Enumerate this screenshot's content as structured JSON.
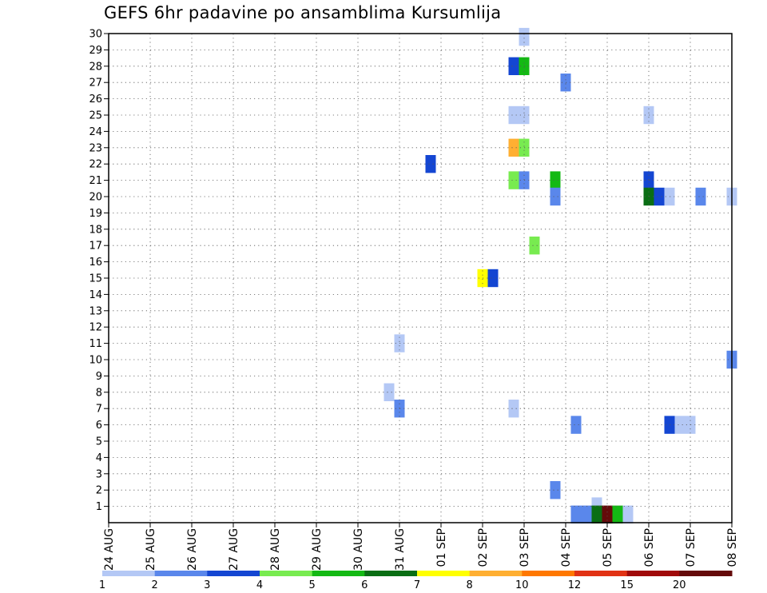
{
  "chart_data": {
    "type": "heatmap",
    "title": "GEFS 6hr padavine po ansamblima Kursumlija",
    "xlabel": "",
    "ylabel": "",
    "x_ticks": [
      "24 AUG",
      "25 AUG",
      "26 AUG",
      "27 AUG",
      "28 AUG",
      "29 AUG",
      "30 AUG",
      "31 AUG",
      "01 SEP",
      "02 SEP",
      "03 SEP",
      "04 SEP",
      "05 SEP",
      "06 SEP",
      "07 SEP",
      "08 SEP"
    ],
    "y_ticks": [
      1,
      2,
      3,
      4,
      5,
      6,
      7,
      8,
      9,
      10,
      11,
      12,
      13,
      14,
      15,
      16,
      17,
      18,
      19,
      20,
      21,
      22,
      23,
      24,
      25,
      26,
      27,
      28,
      29,
      30
    ],
    "xlim": [
      "24 AUG",
      "08 SEP"
    ],
    "ylim": [
      0,
      30
    ],
    "grid": true,
    "legend": {
      "position": "bottom",
      "labels": [
        "1",
        "2",
        "3",
        "4",
        "5",
        "6",
        "7",
        "8",
        "10",
        "12",
        "15",
        "20"
      ],
      "colors": [
        "#b4c8f5",
        "#5a87eb",
        "#1446d2",
        "#78eb50",
        "#14b914",
        "#0a6e14",
        "#ffff00",
        "#ffaf32",
        "#ff7800",
        "#e13214",
        "#a00a0a",
        "#640a0a"
      ]
    },
    "cells": [
      {
        "date": "03 SEP",
        "member": 29.8,
        "value": 1.5
      },
      {
        "date": "02 SEP 18Z",
        "member": 28,
        "value": 3.5
      },
      {
        "date": "03 SEP",
        "member": 28,
        "value": 5.5
      },
      {
        "date": "04 SEP",
        "member": 27,
        "value": 2.5
      },
      {
        "date": "02 SEP 18Z",
        "member": 25,
        "value": 1.5
      },
      {
        "date": "03 SEP",
        "member": 25,
        "value": 1.5
      },
      {
        "date": "06 SEP",
        "member": 25,
        "value": 1.5
      },
      {
        "date": "02 SEP 18Z",
        "member": 23,
        "value": 9
      },
      {
        "date": "03 SEP",
        "member": 23,
        "value": 4.5
      },
      {
        "date": "31 AUG 18Z",
        "member": 22,
        "value": 3.5
      },
      {
        "date": "02 SEP 18Z",
        "member": 21,
        "value": 4.5
      },
      {
        "date": "03 SEP",
        "member": 21,
        "value": 2.5
      },
      {
        "date": "03 SEP 18Z",
        "member": 21,
        "value": 5.5
      },
      {
        "date": "03 SEP 18Z",
        "member": 20,
        "value": 2.5
      },
      {
        "date": "06 SEP",
        "member": 21,
        "value": 3.5
      },
      {
        "date": "06 SEP",
        "member": 20,
        "value": 6.5
      },
      {
        "date": "06 SEP 06Z",
        "member": 20,
        "value": 3.5
      },
      {
        "date": "06 SEP 12Z",
        "member": 20,
        "value": 1.5
      },
      {
        "date": "07 SEP 06Z",
        "member": 20,
        "value": 2.5
      },
      {
        "date": "08 SEP",
        "member": 20,
        "value": 1.5
      },
      {
        "date": "03 SEP 06Z",
        "member": 17,
        "value": 4.5
      },
      {
        "date": "02 SEP",
        "member": 15,
        "value": 7.5
      },
      {
        "date": "02 SEP 06Z",
        "member": 15,
        "value": 3.5
      },
      {
        "date": "31 AUG",
        "member": 11,
        "value": 1.5
      },
      {
        "date": "08 SEP",
        "member": 10,
        "value": 2.5
      },
      {
        "date": "30 AUG 18Z",
        "member": 8,
        "value": 1.5
      },
      {
        "date": "31 AUG",
        "member": 7,
        "value": 2.5
      },
      {
        "date": "02 SEP 18Z",
        "member": 7,
        "value": 1.5
      },
      {
        "date": "04 SEP 06Z",
        "member": 6,
        "value": 2.5
      },
      {
        "date": "06 SEP 12Z",
        "member": 6,
        "value": 3.5
      },
      {
        "date": "06 SEP 18Z",
        "member": 6,
        "value": 1.5
      },
      {
        "date": "07 SEP",
        "member": 6,
        "value": 1.5
      },
      {
        "date": "03 SEP 18Z",
        "member": 2,
        "value": 2.5
      },
      {
        "date": "04 SEP 18Z",
        "member": 1,
        "value": 1.5
      },
      {
        "date": "04 SEP 06Z",
        "member": 0,
        "value": 2.5
      },
      {
        "date": "04 SEP 12Z",
        "member": 0,
        "value": 2.5
      },
      {
        "date": "04 SEP 18Z",
        "member": 0,
        "value": 6.5
      },
      {
        "date": "05 SEP",
        "member": 0,
        "value": 25
      },
      {
        "date": "05 SEP 06Z",
        "member": 0,
        "value": 5.5
      },
      {
        "date": "05 SEP 12Z",
        "member": 0,
        "value": 1.5
      }
    ]
  }
}
